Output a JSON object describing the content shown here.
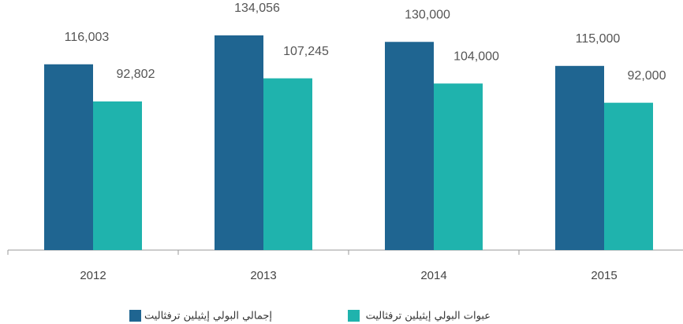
{
  "chart_data": {
    "type": "bar",
    "categories": [
      "2012",
      "2013",
      "2014",
      "2015"
    ],
    "series": [
      {
        "name": "إجمالي البولي إيثيلين ترفثاليت",
        "color": "#1f6591",
        "values": [
          116003,
          134056,
          130000,
          115000
        ],
        "value_labels": [
          "116,003",
          "134,056",
          "130,000",
          "115,000"
        ]
      },
      {
        "name": "عبوات البولي إيثيلين ترفثاليت",
        "color": "#1fb3ad",
        "values": [
          92802,
          107245,
          104000,
          92000
        ],
        "value_labels": [
          "92,802",
          "107,245",
          "104,000",
          "92,000"
        ]
      }
    ]
  }
}
